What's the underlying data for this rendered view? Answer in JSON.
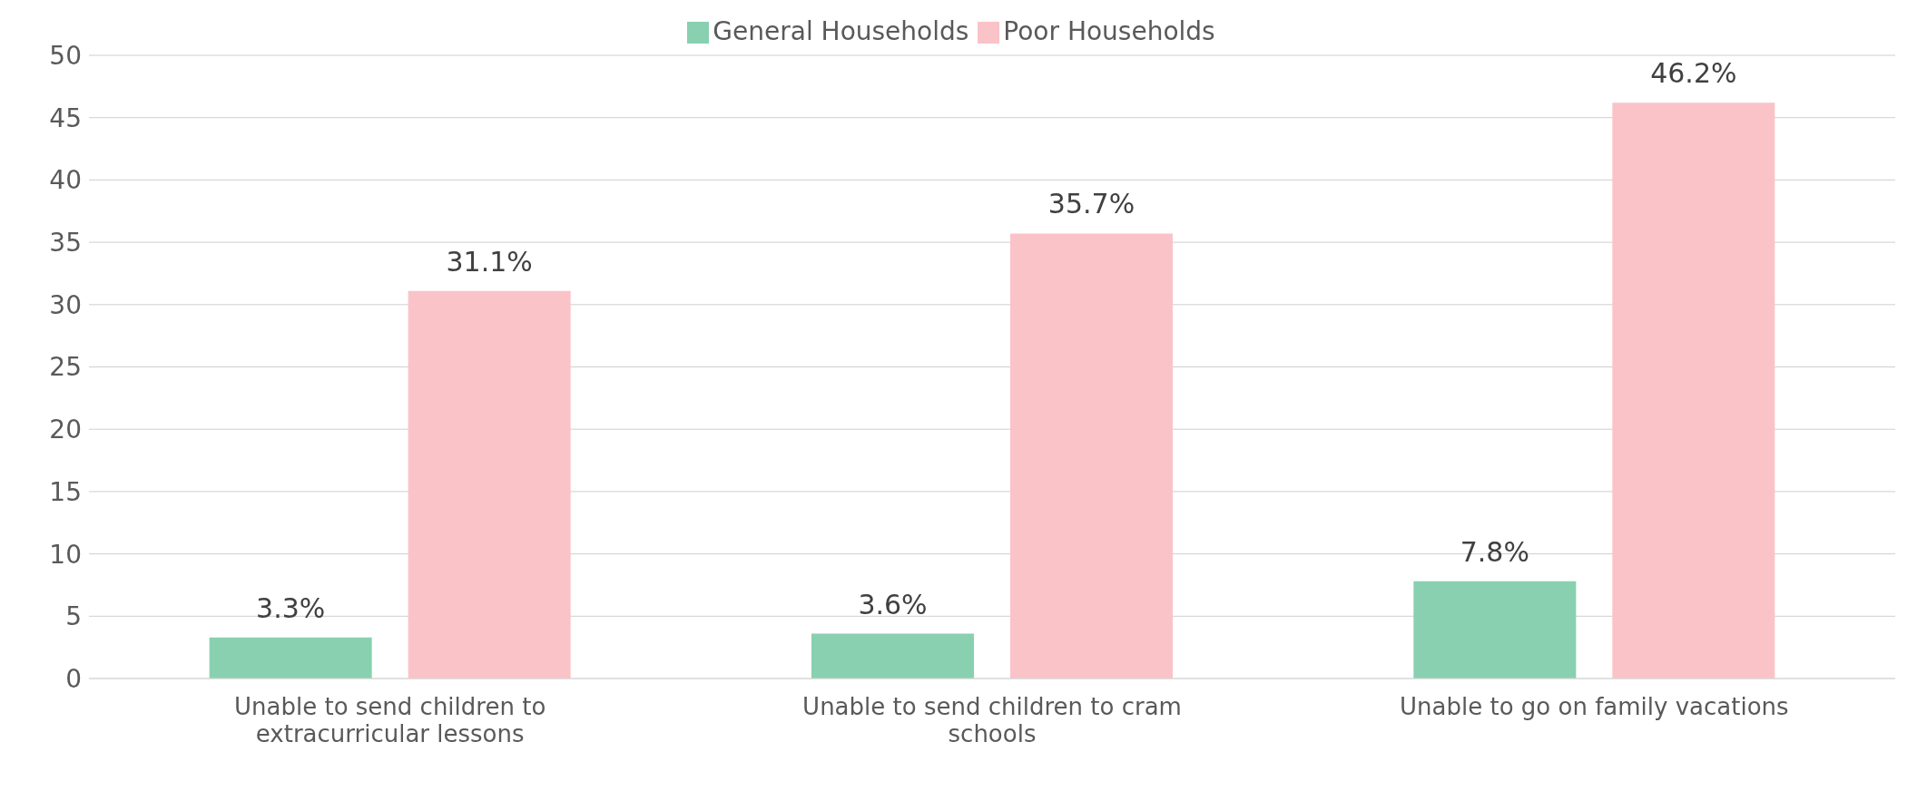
{
  "chart_data": {
    "type": "bar",
    "categories": [
      "Unable to send children to extracurricular lessons",
      "Unable to send children to cram schools",
      "Unable to go on family vacations"
    ],
    "series": [
      {
        "name": "General Households",
        "color": "#88d0b0",
        "values": [
          3.3,
          3.6,
          7.8
        ],
        "value_labels": [
          "3.3%",
          "3.6%",
          "7.8%"
        ]
      },
      {
        "name": "Poor Households",
        "color": "#fac3c8",
        "values": [
          31.1,
          35.7,
          46.2
        ],
        "value_labels": [
          "31.1%",
          "35.7%",
          "46.2%"
        ]
      }
    ],
    "ylim": [
      0,
      50
    ],
    "yticks": [
      0,
      5,
      10,
      15,
      20,
      25,
      30,
      35,
      40,
      45,
      50
    ],
    "grid": "y",
    "legend": "top"
  }
}
